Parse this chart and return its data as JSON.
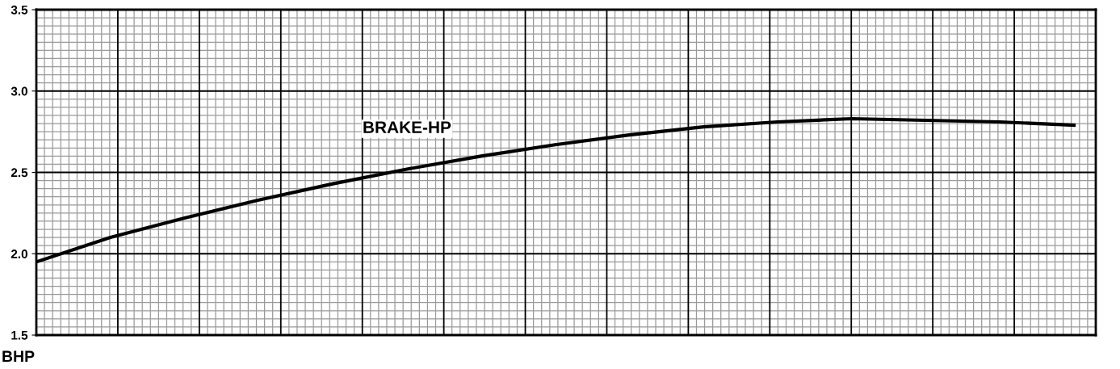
{
  "chart_data": {
    "type": "line",
    "ylabel": "BHP",
    "categories": [
      null,
      null,
      null,
      null,
      null,
      null,
      null,
      null,
      null,
      null,
      null,
      null,
      null,
      null,
      null
    ],
    "series": [
      {
        "name": "BRAKE-HP",
        "color": "#000000",
        "values": [
          1.95,
          2.1,
          2.22,
          2.33,
          2.43,
          2.52,
          2.6,
          2.67,
          2.73,
          2.78,
          2.81,
          2.83,
          2.82,
          2.81,
          2.79
        ]
      }
    ],
    "ylim": [
      1.5,
      3.5
    ],
    "yticks": [
      {
        "value": 1.5,
        "label": "1.5"
      },
      {
        "value": 2,
        "label": "2.0"
      },
      {
        "value": 2.5,
        "label": "2.5"
      },
      {
        "value": 3,
        "label": "3.0"
      },
      {
        "value": 3.5,
        "label": "3.5"
      }
    ],
    "grid": true,
    "legend": false,
    "marker": "none",
    "line_style": "solid"
  }
}
